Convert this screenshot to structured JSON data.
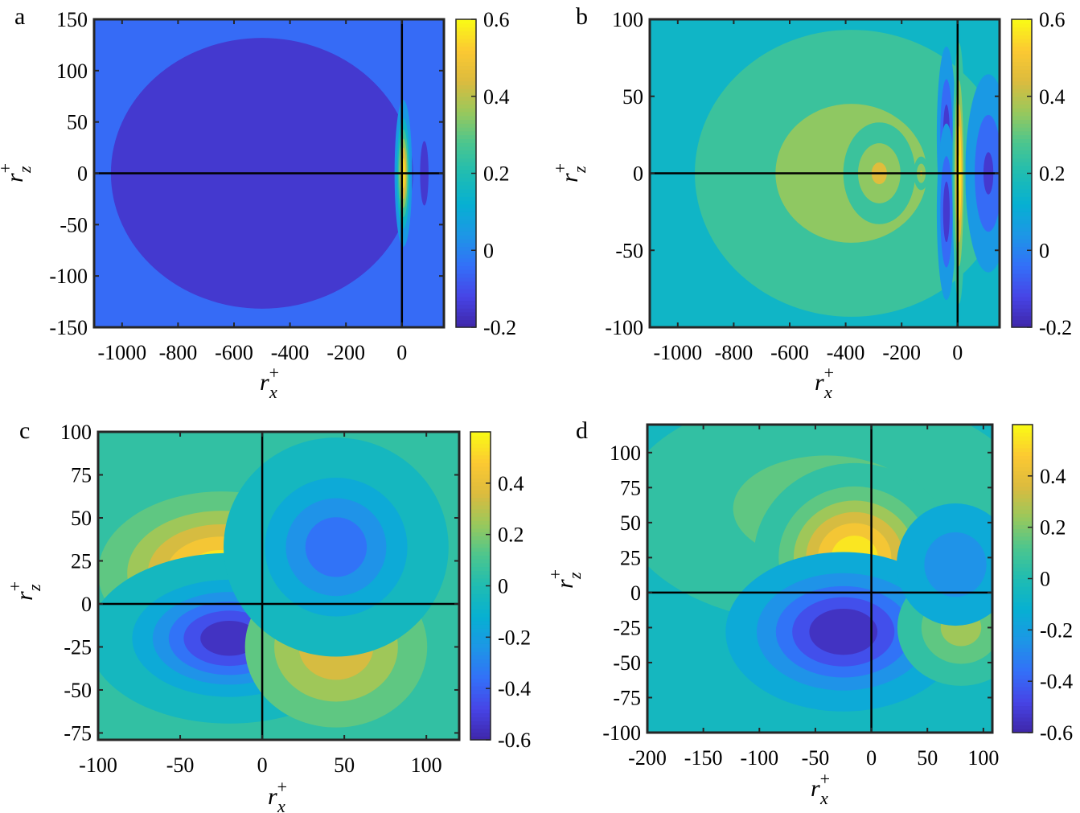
{
  "chart_data": [
    {
      "type": "heatmap",
      "subtype": "filled-contour",
      "panel_label": "a",
      "xlabel": {
        "base": "r",
        "sup": "+",
        "sub": "x"
      },
      "ylabel": {
        "base": "r",
        "sup": "+",
        "sub": "z"
      },
      "xlim": [
        -1100,
        150
      ],
      "ylim": [
        -150,
        150
      ],
      "xticks": [
        -1000,
        -800,
        -600,
        -400,
        -200,
        0
      ],
      "yticks": [
        150,
        100,
        50,
        0,
        -50,
        -100,
        -150
      ],
      "clim": [
        -0.2,
        0.6
      ],
      "cticks": [
        0.6,
        0.4,
        0.2,
        0,
        -0.2
      ],
      "level_step": 0.1,
      "colormap": "parula",
      "crosshair": [
        0,
        0
      ],
      "background_value": -0.05,
      "features": [
        {
          "x": -500,
          "z": 0,
          "value": -0.16,
          "sx": 430,
          "sz": 105
        },
        {
          "x": -120,
          "z": 0,
          "value": -0.05,
          "sx": 25,
          "sz": 15
        },
        {
          "x": 5,
          "z": 0,
          "value": 0.56,
          "sx": 14,
          "sz": 32
        },
        {
          "x": 80,
          "z": 0,
          "value": -0.16,
          "sx": 12,
          "sz": 25
        }
      ]
    },
    {
      "type": "heatmap",
      "subtype": "filled-contour",
      "panel_label": "b",
      "xlabel": {
        "base": "r",
        "sup": "+",
        "sub": "x"
      },
      "ylabel": {
        "base": "r",
        "sup": "+",
        "sub": "z"
      },
      "xlim": [
        -1100,
        150
      ],
      "ylim": [
        -100,
        100
      ],
      "xticks": [
        -1000,
        -800,
        -600,
        -400,
        -200,
        0
      ],
      "yticks": [
        100,
        50,
        0,
        -50,
        -100
      ],
      "clim": [
        -0.2,
        0.6
      ],
      "cticks": [
        0.6,
        0.4,
        0.2,
        0,
        -0.2
      ],
      "level_step": 0.1,
      "colormap": "parula",
      "crosshair": [
        0,
        0
      ],
      "background_value": 0.15,
      "features": [
        {
          "x": -380,
          "z": 0,
          "value": 0.36,
          "sx": 330,
          "sz": 55
        },
        {
          "x": -280,
          "z": 0,
          "value": 0.42,
          "sx": 70,
          "sz": 18
        },
        {
          "x": -130,
          "z": 0,
          "value": 0.41,
          "sx": 15,
          "sz": 6
        },
        {
          "x": -40,
          "z": 25,
          "value": -0.16,
          "sx": 18,
          "sz": 30
        },
        {
          "x": -40,
          "z": -25,
          "value": -0.16,
          "sx": 18,
          "sz": 30
        },
        {
          "x": 110,
          "z": 0,
          "value": -0.12,
          "sx": 45,
          "sz": 35
        },
        {
          "x": 5,
          "z": 0,
          "value": 0.62,
          "sx": 11,
          "sz": 40
        }
      ]
    },
    {
      "type": "heatmap",
      "subtype": "filled-contour",
      "panel_label": "c",
      "xlabel": {
        "base": "r",
        "sup": "+",
        "sub": "x"
      },
      "ylabel": {
        "base": "r",
        "sup": "+",
        "sub": "z"
      },
      "xlim": [
        -100,
        120
      ],
      "ylim": [
        -79,
        100
      ],
      "xticks": [
        -100,
        -50,
        0,
        50,
        100
      ],
      "yticks": [
        100,
        75,
        50,
        25,
        0,
        -25,
        -50,
        -75
      ],
      "clim": [
        -0.6,
        0.6
      ],
      "cticks": [
        0.4,
        0.2,
        0,
        -0.2,
        -0.4,
        -0.6
      ],
      "level_step": 0.1,
      "colormap": "parula",
      "crosshair": [
        0,
        0
      ],
      "background_value": 0.02,
      "features": [
        {
          "x": -25,
          "z": 18,
          "value": 0.58,
          "sx": 38,
          "sz": 24
        },
        {
          "x": -20,
          "z": -20,
          "value": -0.58,
          "sx": 33,
          "sz": 19
        },
        {
          "x": 45,
          "z": -25,
          "value": 0.38,
          "sx": 32,
          "sz": 27
        },
        {
          "x": 45,
          "z": 33,
          "value": -0.38,
          "sx": 28,
          "sz": 26
        }
      ]
    },
    {
      "type": "heatmap",
      "subtype": "filled-contour",
      "panel_label": "d",
      "xlabel": {
        "base": "r",
        "sup": "+",
        "sub": "x"
      },
      "ylabel": {
        "base": "r",
        "sup": "+",
        "sub": "z"
      },
      "xlim": [
        -200,
        108
      ],
      "ylim": [
        -100,
        120
      ],
      "xticks": [
        -200,
        -150,
        -100,
        -50,
        0,
        50,
        100
      ],
      "yticks": [
        100,
        75,
        50,
        25,
        0,
        -25,
        -50,
        -75,
        -100
      ],
      "clim": [
        -0.6,
        0.6
      ],
      "cticks": [
        0.4,
        0.2,
        0,
        -0.2,
        -0.4,
        -0.6
      ],
      "level_step": 0.1,
      "colormap": "parula",
      "crosshair": [
        0,
        0
      ],
      "background_value": -0.05,
      "features": [
        {
          "x": -40,
          "z": 60,
          "value": 0.15,
          "sx": 110,
          "sz": 50
        },
        {
          "x": -15,
          "z": 25,
          "value": 0.58,
          "sx": 40,
          "sz": 30
        },
        {
          "x": -25,
          "z": -28,
          "value": -0.6,
          "sx": 48,
          "sz": 26
        },
        {
          "x": 80,
          "z": -25,
          "value": 0.25,
          "sx": 30,
          "sz": 22
        },
        {
          "x": 75,
          "z": 20,
          "value": -0.28,
          "sx": 30,
          "sz": 25
        }
      ]
    }
  ]
}
